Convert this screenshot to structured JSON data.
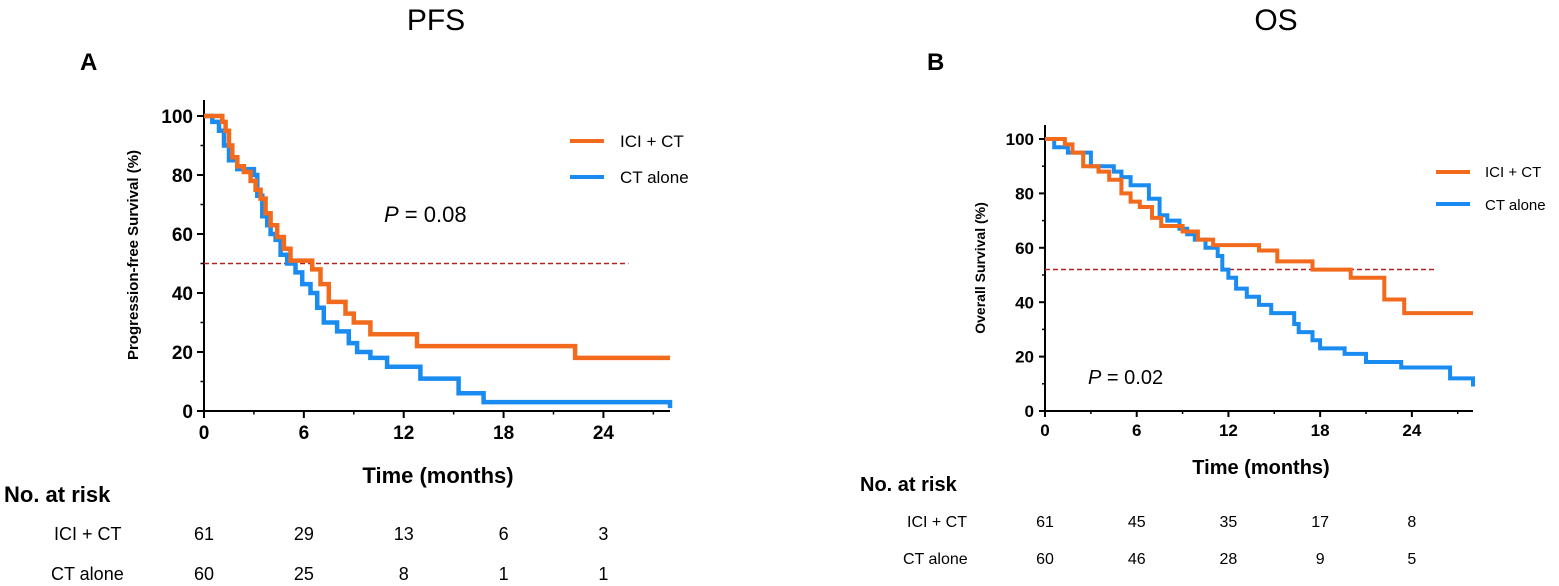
{
  "chart_data": [
    {
      "type": "line",
      "panel": "A",
      "title": "PFS",
      "xlabel": "Time (months)",
      "ylabel": "Progression-free Survival (%)",
      "xlim": [
        0,
        28
      ],
      "ylim": [
        0,
        100
      ],
      "xticks": [
        0,
        6,
        12,
        18,
        24
      ],
      "yticks": [
        0,
        20,
        40,
        60,
        80,
        100
      ],
      "p_label": "P",
      "p_value": " = 0.08",
      "median_line": 50,
      "series": [
        {
          "name": "ICI + CT",
          "color": "#f26b1d",
          "steps": [
            [
              0,
              100
            ],
            [
              0.9,
              100
            ],
            [
              1.1,
              98
            ],
            [
              1.3,
              95
            ],
            [
              1.5,
              90
            ],
            [
              1.7,
              86
            ],
            [
              2,
              83
            ],
            [
              2.4,
              81
            ],
            [
              2.8,
              78
            ],
            [
              3.1,
              75
            ],
            [
              3.4,
              72
            ],
            [
              3.7,
              67
            ],
            [
              4,
              63
            ],
            [
              4.4,
              59
            ],
            [
              4.8,
              55
            ],
            [
              5.2,
              51
            ],
            [
              6.5,
              48
            ],
            [
              7,
              43
            ],
            [
              7.5,
              37
            ],
            [
              8.5,
              33
            ],
            [
              9,
              30
            ],
            [
              10,
              26
            ],
            [
              12.8,
              22
            ],
            [
              22.3,
              18
            ],
            [
              28,
              18
            ]
          ]
        },
        {
          "name": "CT alone",
          "color": "#1a8bf0",
          "steps": [
            [
              0,
              100
            ],
            [
              0.5,
              98
            ],
            [
              0.9,
              95
            ],
            [
              1.2,
              90
            ],
            [
              1.5,
              85
            ],
            [
              2,
              82
            ],
            [
              3,
              80
            ],
            [
              3.2,
              73
            ],
            [
              3.5,
              66
            ],
            [
              3.8,
              63
            ],
            [
              4,
              60
            ],
            [
              4.3,
              58
            ],
            [
              4.6,
              53
            ],
            [
              5,
              50
            ],
            [
              5.5,
              47
            ],
            [
              5.9,
              43
            ],
            [
              6.4,
              40
            ],
            [
              6.8,
              35
            ],
            [
              7.2,
              30
            ],
            [
              8,
              27
            ],
            [
              8.7,
              23
            ],
            [
              9.2,
              20
            ],
            [
              10,
              18
            ],
            [
              11,
              15
            ],
            [
              13,
              11
            ],
            [
              15.3,
              6
            ],
            [
              16.8,
              3
            ],
            [
              28,
              3
            ],
            [
              28,
              1
            ]
          ]
        }
      ],
      "risk_table": {
        "heading": "No. at risk",
        "times": [
          0,
          6,
          12,
          18,
          24
        ],
        "rows": [
          {
            "label": "ICI + CT",
            "values": [
              "61",
              "29",
              "13",
              "6",
              "3"
            ]
          },
          {
            "label": "CT alone",
            "values": [
              "60",
              "25",
              "8",
              "1",
              "1"
            ]
          }
        ]
      }
    },
    {
      "type": "line",
      "panel": "B",
      "title": "OS",
      "xlabel": "Time (months)",
      "ylabel": "Overall Survival (%)",
      "xlim": [
        0,
        28
      ],
      "ylim": [
        0,
        100
      ],
      "xticks": [
        0,
        6,
        12,
        18,
        24
      ],
      "yticks": [
        0,
        20,
        40,
        60,
        80,
        100
      ],
      "p_label": "P",
      "p_value": " = 0.02",
      "median_line": 52,
      "series": [
        {
          "name": "ICI + CT",
          "color": "#f26b1d",
          "steps": [
            [
              0,
              100
            ],
            [
              1.3,
              98
            ],
            [
              1.8,
              95
            ],
            [
              2.5,
              90
            ],
            [
              3.5,
              88
            ],
            [
              4.2,
              85
            ],
            [
              5,
              80
            ],
            [
              5.6,
              77
            ],
            [
              6.2,
              75
            ],
            [
              7,
              71
            ],
            [
              7.6,
              68
            ],
            [
              9,
              66
            ],
            [
              10,
              63
            ],
            [
              11,
              61
            ],
            [
              14,
              59
            ],
            [
              15.2,
              55
            ],
            [
              17.5,
              52
            ],
            [
              20,
              49
            ],
            [
              22.2,
              41
            ],
            [
              23.5,
              36
            ],
            [
              28,
              36
            ]
          ]
        },
        {
          "name": "CT alone",
          "color": "#1a8bf0",
          "steps": [
            [
              0,
              100
            ],
            [
              0.6,
              97
            ],
            [
              1.5,
              95
            ],
            [
              3,
              90
            ],
            [
              4.5,
              88
            ],
            [
              5,
              86
            ],
            [
              5.6,
              83
            ],
            [
              6.8,
              78
            ],
            [
              7.5,
              72
            ],
            [
              8,
              70
            ],
            [
              8.8,
              67
            ],
            [
              9.3,
              65
            ],
            [
              9.8,
              63
            ],
            [
              10.5,
              60
            ],
            [
              11.3,
              57
            ],
            [
              11.6,
              52
            ],
            [
              12,
              49
            ],
            [
              12.5,
              45
            ],
            [
              13.2,
              42
            ],
            [
              14,
              39
            ],
            [
              14.8,
              36
            ],
            [
              16.3,
              32
            ],
            [
              16.6,
              29
            ],
            [
              17.5,
              26
            ],
            [
              18,
              23
            ],
            [
              19.6,
              21
            ],
            [
              21,
              18
            ],
            [
              23.3,
              16
            ],
            [
              26.5,
              12
            ],
            [
              28,
              12
            ],
            [
              28,
              9
            ]
          ]
        }
      ],
      "risk_table": {
        "heading": "No. at risk",
        "times": [
          0,
          6,
          12,
          18,
          24
        ],
        "rows": [
          {
            "label": "ICI + CT",
            "values": [
              "61",
              "45",
              "35",
              "17",
              "8"
            ]
          },
          {
            "label": "CT alone",
            "values": [
              "60",
              "46",
              "28",
              "9",
              "5"
            ]
          }
        ]
      }
    }
  ]
}
